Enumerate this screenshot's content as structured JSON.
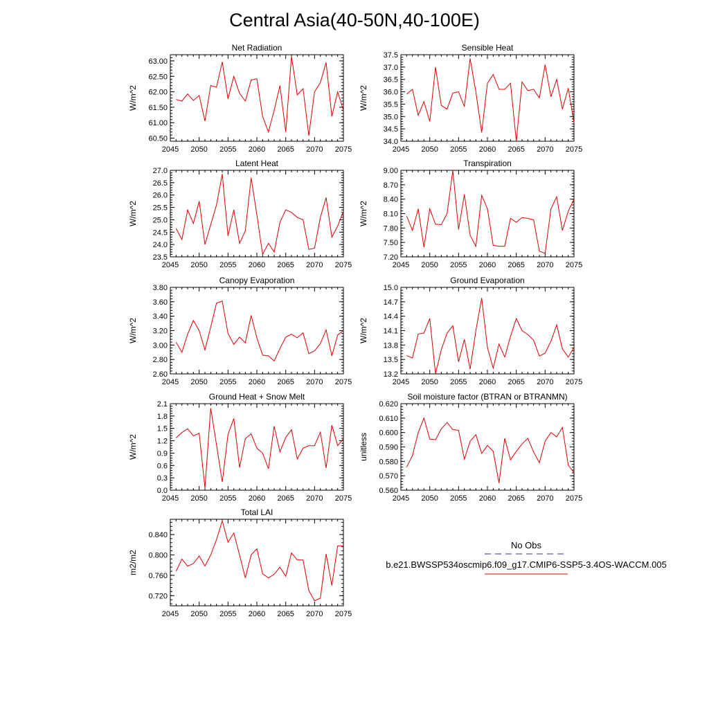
{
  "title": "Central Asia(40-50N,40-100E)",
  "legend": {
    "obs_label": "No Obs",
    "obs_color": "#2f2f8f",
    "run_label": "b.e21.BWSSP534oscmip6.f09_g17.CMIP6-SSP5-3.4OS-WACCM.005",
    "run_color": "#e00000"
  },
  "chart_data": [
    {
      "type": "line",
      "title": "Net Radiation",
      "ylabel": "W/m^2",
      "xlim": [
        2045,
        2075
      ],
      "ylim": [
        60.4,
        63.2
      ],
      "yticks": [
        "60.50",
        "61.00",
        "61.50",
        "62.00",
        "62.50",
        "63.00"
      ],
      "xticks": [
        "2045",
        "2050",
        "2055",
        "2060",
        "2065",
        "2070",
        "2075"
      ],
      "x": [
        2046,
        2047,
        2048,
        2049,
        2050,
        2051,
        2052,
        2053,
        2054,
        2055,
        2056,
        2057,
        2058,
        2059,
        2060,
        2061,
        2062,
        2063,
        2064,
        2065,
        2066,
        2067,
        2068,
        2069,
        2070,
        2071,
        2072,
        2073,
        2074,
        2075
      ],
      "series": [
        {
          "values": [
            61.75,
            61.7,
            61.93,
            61.72,
            61.88,
            61.05,
            62.2,
            62.15,
            62.97,
            61.77,
            62.5,
            61.95,
            61.7,
            62.38,
            62.42,
            61.2,
            60.7,
            61.4,
            62.2,
            60.7,
            63.15,
            61.9,
            62.1,
            60.58,
            62.0,
            62.3,
            62.95,
            61.2,
            62.0,
            61.4
          ]
        }
      ]
    },
    {
      "type": "line",
      "title": "Sensible Heat",
      "ylabel": "W/m^2",
      "xlim": [
        2045,
        2075
      ],
      "ylim": [
        34.0,
        37.5
      ],
      "yticks": [
        "34.0",
        "34.5",
        "35.0",
        "35.5",
        "36.0",
        "36.5",
        "37.0",
        "37.5"
      ],
      "xticks": [
        "2045",
        "2050",
        "2055",
        "2060",
        "2065",
        "2070",
        "2075"
      ],
      "x": [
        2046,
        2047,
        2048,
        2049,
        2050,
        2051,
        2052,
        2053,
        2054,
        2055,
        2056,
        2057,
        2058,
        2059,
        2060,
        2061,
        2062,
        2063,
        2064,
        2065,
        2066,
        2067,
        2068,
        2069,
        2070,
        2071,
        2072,
        2073,
        2074,
        2075
      ],
      "series": [
        {
          "values": [
            35.9,
            36.1,
            35.05,
            35.6,
            34.8,
            37.0,
            35.45,
            35.3,
            35.95,
            36.0,
            35.4,
            37.35,
            36.0,
            34.35,
            36.35,
            36.7,
            36.1,
            36.1,
            36.35,
            34.0,
            36.4,
            36.05,
            36.1,
            35.75,
            37.1,
            35.8,
            36.5,
            35.3,
            36.15,
            34.75
          ]
        }
      ]
    },
    {
      "type": "line",
      "title": "Latent Heat",
      "ylabel": "W/m^2",
      "xlim": [
        2045,
        2075
      ],
      "ylim": [
        23.5,
        27.0
      ],
      "yticks": [
        "23.5",
        "24.0",
        "24.5",
        "25.0",
        "25.5",
        "26.0",
        "26.5",
        "27.0"
      ],
      "xticks": [
        "2045",
        "2050",
        "2055",
        "2060",
        "2065",
        "2070",
        "2075"
      ],
      "x": [
        2046,
        2047,
        2048,
        2049,
        2050,
        2051,
        2052,
        2053,
        2054,
        2055,
        2056,
        2057,
        2058,
        2059,
        2060,
        2061,
        2062,
        2063,
        2064,
        2065,
        2066,
        2067,
        2068,
        2069,
        2070,
        2071,
        2072,
        2073,
        2074,
        2075
      ],
      "series": [
        {
          "values": [
            24.65,
            24.2,
            25.4,
            24.85,
            25.75,
            24.0,
            24.8,
            25.6,
            26.85,
            24.35,
            25.4,
            24.05,
            24.55,
            26.7,
            25.2,
            23.6,
            24.05,
            23.7,
            24.9,
            25.4,
            25.3,
            25.1,
            25.0,
            23.8,
            23.85,
            25.1,
            25.9,
            24.3,
            24.75,
            25.35
          ]
        }
      ]
    },
    {
      "type": "line",
      "title": "Transpiration",
      "ylabel": "W/m^2",
      "xlim": [
        2045,
        2075
      ],
      "ylim": [
        7.2,
        9.0
      ],
      "yticks": [
        "7.20",
        "7.50",
        "7.80",
        "8.10",
        "8.40",
        "8.70",
        "9.00"
      ],
      "xticks": [
        "2045",
        "2050",
        "2055",
        "2060",
        "2065",
        "2070",
        "2075"
      ],
      "x": [
        2046,
        2047,
        2048,
        2049,
        2050,
        2051,
        2052,
        2053,
        2054,
        2055,
        2056,
        2057,
        2058,
        2059,
        2060,
        2061,
        2062,
        2063,
        2064,
        2065,
        2066,
        2067,
        2068,
        2069,
        2070,
        2071,
        2072,
        2073,
        2074,
        2075
      ],
      "series": [
        {
          "values": [
            8.05,
            7.75,
            8.2,
            7.4,
            8.2,
            7.88,
            7.87,
            8.1,
            9.0,
            7.77,
            8.5,
            7.65,
            7.42,
            8.48,
            8.2,
            7.44,
            7.42,
            7.42,
            8.0,
            7.92,
            8.02,
            8.0,
            7.97,
            7.32,
            7.27,
            8.2,
            8.45,
            7.75,
            8.15,
            8.4
          ]
        }
      ]
    },
    {
      "type": "line",
      "title": "Canopy Evaporation",
      "ylabel": "W/m^2",
      "xlim": [
        2045,
        2075
      ],
      "ylim": [
        2.6,
        3.8
      ],
      "yticks": [
        "2.60",
        "2.80",
        "3.00",
        "3.20",
        "3.40",
        "3.60",
        "3.80"
      ],
      "xticks": [
        "2045",
        "2050",
        "2055",
        "2060",
        "2065",
        "2070",
        "2075"
      ],
      "x": [
        2046,
        2047,
        2048,
        2049,
        2050,
        2051,
        2052,
        2053,
        2054,
        2055,
        2056,
        2057,
        2058,
        2059,
        2060,
        2061,
        2062,
        2063,
        2064,
        2065,
        2066,
        2067,
        2068,
        2069,
        2070,
        2071,
        2072,
        2073,
        2074,
        2075
      ],
      "series": [
        {
          "values": [
            3.04,
            2.9,
            3.15,
            3.34,
            3.2,
            2.93,
            3.25,
            3.58,
            3.61,
            3.16,
            3.01,
            3.11,
            3.03,
            3.41,
            3.1,
            2.86,
            2.85,
            2.78,
            2.95,
            3.11,
            3.15,
            3.1,
            3.17,
            2.88,
            2.92,
            3.02,
            3.21,
            2.85,
            3.14,
            3.2
          ]
        }
      ]
    },
    {
      "type": "line",
      "title": "Ground Evaporation",
      "ylabel": "W/m^2",
      "xlim": [
        2045,
        2075
      ],
      "ylim": [
        13.2,
        15.0
      ],
      "yticks": [
        "13.2",
        "13.5",
        "13.8",
        "14.1",
        "14.4",
        "14.7",
        "15.0"
      ],
      "xticks": [
        "2045",
        "2050",
        "2055",
        "2060",
        "2065",
        "2070",
        "2075"
      ],
      "x": [
        2046,
        2047,
        2048,
        2049,
        2050,
        2051,
        2052,
        2053,
        2054,
        2055,
        2056,
        2057,
        2058,
        2059,
        2060,
        2061,
        2062,
        2063,
        2064,
        2065,
        2066,
        2067,
        2068,
        2069,
        2070,
        2071,
        2072,
        2073,
        2074,
        2075
      ],
      "series": [
        {
          "values": [
            13.58,
            13.53,
            14.03,
            14.05,
            14.35,
            13.2,
            13.7,
            14.05,
            14.2,
            13.45,
            13.92,
            13.3,
            14.1,
            14.78,
            13.75,
            13.32,
            13.82,
            13.55,
            13.98,
            14.35,
            14.1,
            14.02,
            13.9,
            13.57,
            13.63,
            13.88,
            14.22,
            13.72,
            13.55,
            13.75
          ]
        }
      ]
    },
    {
      "type": "line",
      "title": "Ground Heat + Snow Melt",
      "ylabel": "W/m^2",
      "xlim": [
        2045,
        2075
      ],
      "ylim": [
        0.0,
        2.1
      ],
      "yticks": [
        "0.0",
        "0.3",
        "0.6",
        "0.9",
        "1.2",
        "1.5",
        "1.8",
        "2.1"
      ],
      "xticks": [
        "2045",
        "2050",
        "2055",
        "2060",
        "2065",
        "2070",
        "2075"
      ],
      "x": [
        2046,
        2047,
        2048,
        2049,
        2050,
        2051,
        2052,
        2053,
        2054,
        2055,
        2056,
        2057,
        2058,
        2059,
        2060,
        2061,
        2062,
        2063,
        2064,
        2065,
        2066,
        2067,
        2068,
        2069,
        2070,
        2071,
        2072,
        2073,
        2074,
        2075
      ],
      "series": [
        {
          "values": [
            1.27,
            1.4,
            1.49,
            1.32,
            1.38,
            0.05,
            1.99,
            1.1,
            0.2,
            1.35,
            1.74,
            0.55,
            1.25,
            1.37,
            1.02,
            0.9,
            0.52,
            1.55,
            0.93,
            1.28,
            1.47,
            0.76,
            1.02,
            1.08,
            1.08,
            1.41,
            0.54,
            1.58,
            1.08,
            1.25
          ]
        }
      ]
    },
    {
      "type": "line",
      "title": "Soil moisture factor (BTRAN or BTRANMN)",
      "ylabel": "unitless",
      "xlim": [
        2045,
        2075
      ],
      "ylim": [
        0.56,
        0.62
      ],
      "yticks": [
        "0.560",
        "0.570",
        "0.580",
        "0.590",
        "0.600",
        "0.610",
        "0.620"
      ],
      "xticks": [
        "2045",
        "2050",
        "2055",
        "2060",
        "2065",
        "2070",
        "2075"
      ],
      "x": [
        2046,
        2047,
        2048,
        2049,
        2050,
        2051,
        2052,
        2053,
        2054,
        2055,
        2056,
        2057,
        2058,
        2059,
        2060,
        2061,
        2062,
        2063,
        2064,
        2065,
        2066,
        2067,
        2068,
        2069,
        2070,
        2071,
        2072,
        2073,
        2074,
        2075
      ],
      "series": [
        {
          "values": [
            0.576,
            0.584,
            0.6,
            0.61,
            0.5955,
            0.595,
            0.6025,
            0.607,
            0.602,
            0.6015,
            0.5815,
            0.594,
            0.5985,
            0.5855,
            0.591,
            0.587,
            0.565,
            0.596,
            0.581,
            0.587,
            0.592,
            0.596,
            0.5865,
            0.579,
            0.594,
            0.6,
            0.597,
            0.6035,
            0.5775,
            0.572
          ]
        }
      ]
    },
    {
      "type": "line",
      "title": "Total LAI",
      "ylabel": "m2/m2",
      "xlim": [
        2045,
        2075
      ],
      "ylim": [
        0.7,
        0.87
      ],
      "yticks": [
        "0.720",
        "0.760",
        "0.800",
        "0.840"
      ],
      "xticks": [
        "2045",
        "2050",
        "2055",
        "2060",
        "2065",
        "2070",
        "2075"
      ],
      "x": [
        2046,
        2047,
        2048,
        2049,
        2050,
        2051,
        2052,
        2053,
        2054,
        2055,
        2056,
        2057,
        2058,
        2059,
        2060,
        2061,
        2062,
        2063,
        2064,
        2065,
        2066,
        2067,
        2068,
        2069,
        2070,
        2071,
        2072,
        2073,
        2074,
        2075
      ],
      "series": [
        {
          "values": [
            0.768,
            0.792,
            0.778,
            0.783,
            0.798,
            0.778,
            0.8,
            0.83,
            0.867,
            0.825,
            0.843,
            0.8,
            0.755,
            0.8,
            0.812,
            0.763,
            0.755,
            0.762,
            0.776,
            0.758,
            0.804,
            0.79,
            0.79,
            0.73,
            0.71,
            0.715,
            0.802,
            0.74,
            0.818,
            0.818
          ]
        }
      ]
    }
  ]
}
